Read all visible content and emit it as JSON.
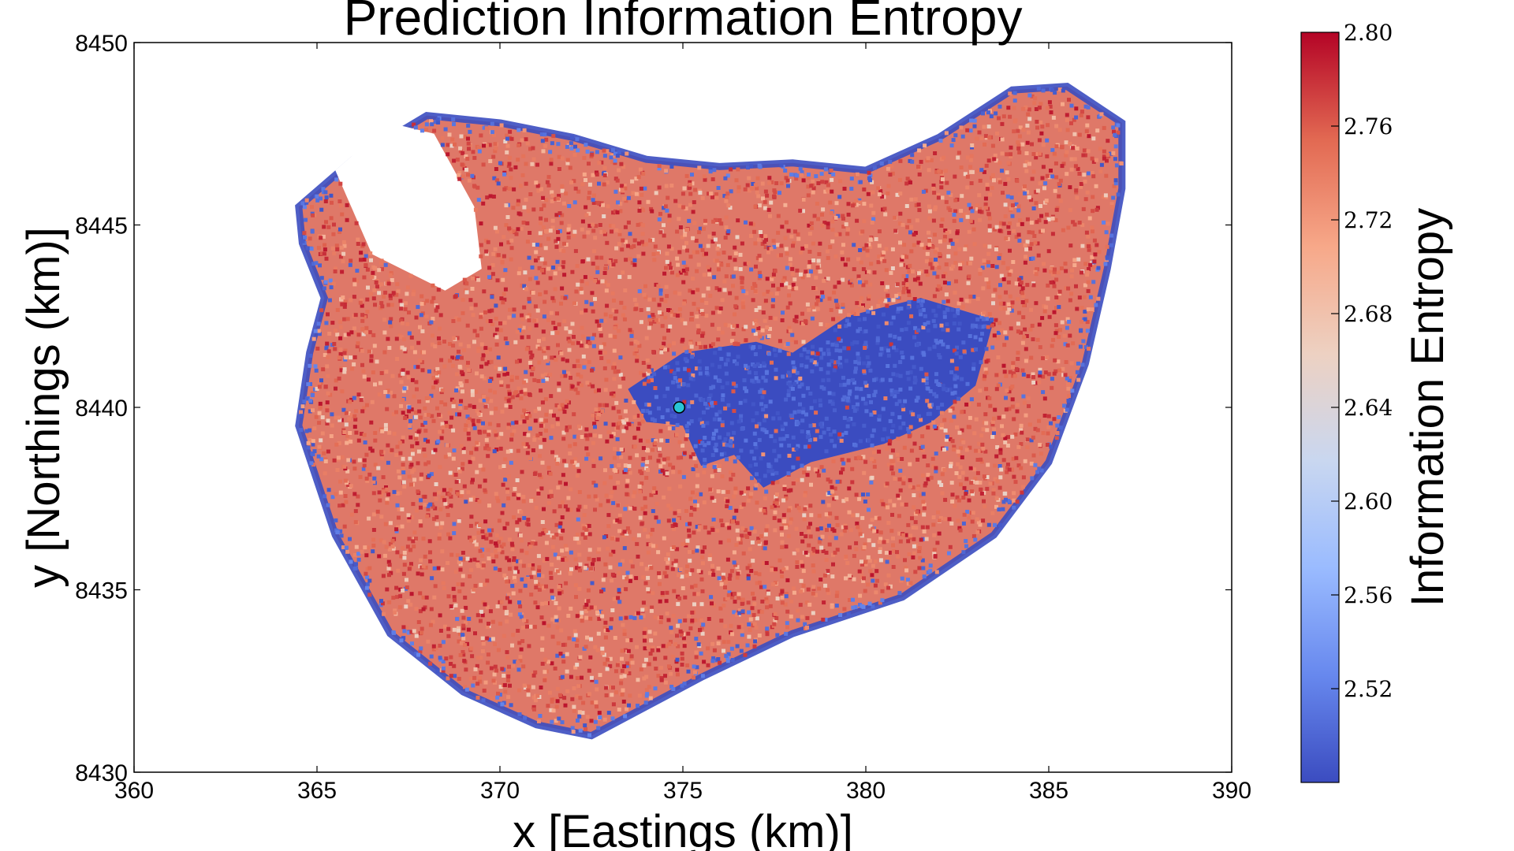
{
  "chart_data": {
    "type": "scatter",
    "title": "Prediction Information Entropy",
    "xlabel": "x [Eastings (km)]",
    "ylabel": "y [Northings (km)]",
    "xlim": [
      360,
      390
    ],
    "ylim": [
      8430,
      8450
    ],
    "xticks": [
      "360",
      "365",
      "370",
      "375",
      "380",
      "385",
      "390"
    ],
    "yticks": [
      "8430",
      "8435",
      "8440",
      "8445",
      "8450"
    ],
    "grid": false,
    "colormap": "coolwarm",
    "colorbar": {
      "label": "Information Entropy",
      "range": [
        2.48,
        2.8
      ],
      "ticks": [
        "2.52",
        "2.56",
        "2.60",
        "2.64",
        "2.68",
        "2.72",
        "2.76",
        "2.80"
      ],
      "colors": [
        "#3b4cc0",
        "#6788ee",
        "#9abbff",
        "#c9d7f0",
        "#edd1c2",
        "#f7a889",
        "#e26952",
        "#b40426"
      ]
    },
    "region": {
      "outline_xy": [
        [
          364.5,
          8445.5
        ],
        [
          366.0,
          8446.8
        ],
        [
          368.0,
          8448.0
        ],
        [
          370.0,
          8447.8
        ],
        [
          372.0,
          8447.4
        ],
        [
          374.0,
          8446.8
        ],
        [
          376.0,
          8446.6
        ],
        [
          378.0,
          8446.7
        ],
        [
          380.0,
          8446.5
        ],
        [
          382.0,
          8447.4
        ],
        [
          384.0,
          8448.7
        ],
        [
          385.5,
          8448.8
        ],
        [
          387.0,
          8447.8
        ],
        [
          387.0,
          8446.0
        ],
        [
          386.6,
          8443.8
        ],
        [
          386.0,
          8441.2
        ],
        [
          385.0,
          8438.5
        ],
        [
          383.5,
          8436.5
        ],
        [
          381.0,
          8434.8
        ],
        [
          378.0,
          8433.8
        ],
        [
          375.5,
          8432.6
        ],
        [
          374.0,
          8431.8
        ],
        [
          372.5,
          8431.0
        ],
        [
          371.0,
          8431.3
        ],
        [
          369.0,
          8432.2
        ],
        [
          367.0,
          8433.8
        ],
        [
          365.5,
          8436.5
        ],
        [
          364.5,
          8439.5
        ],
        [
          364.8,
          8441.5
        ],
        [
          365.2,
          8443.0
        ],
        [
          364.6,
          8444.5
        ]
      ],
      "low_entropy_zone_xy": [
        [
          373.5,
          8440.5
        ],
        [
          375.0,
          8441.5
        ],
        [
          377.0,
          8441.8
        ],
        [
          378.0,
          8441.5
        ],
        [
          379.5,
          8442.5
        ],
        [
          381.5,
          8443.0
        ],
        [
          383.5,
          8442.4
        ],
        [
          383.0,
          8440.6
        ],
        [
          381.8,
          8439.6
        ],
        [
          380.5,
          8439.0
        ],
        [
          378.5,
          8438.5
        ],
        [
          377.2,
          8437.8
        ],
        [
          376.4,
          8438.7
        ],
        [
          375.5,
          8438.4
        ],
        [
          375.0,
          8439.5
        ],
        [
          374.0,
          8439.6
        ]
      ],
      "gap_xy": [
        [
          365.5,
          8446.5
        ],
        [
          367.0,
          8447.8
        ],
        [
          368.2,
          8447.5
        ],
        [
          369.3,
          8445.5
        ],
        [
          369.5,
          8443.8
        ],
        [
          368.5,
          8443.2
        ],
        [
          366.5,
          8444.2
        ]
      ]
    },
    "highlight_point": {
      "x": 374.9,
      "y": 8440.0,
      "color": "#29c5d6"
    }
  }
}
